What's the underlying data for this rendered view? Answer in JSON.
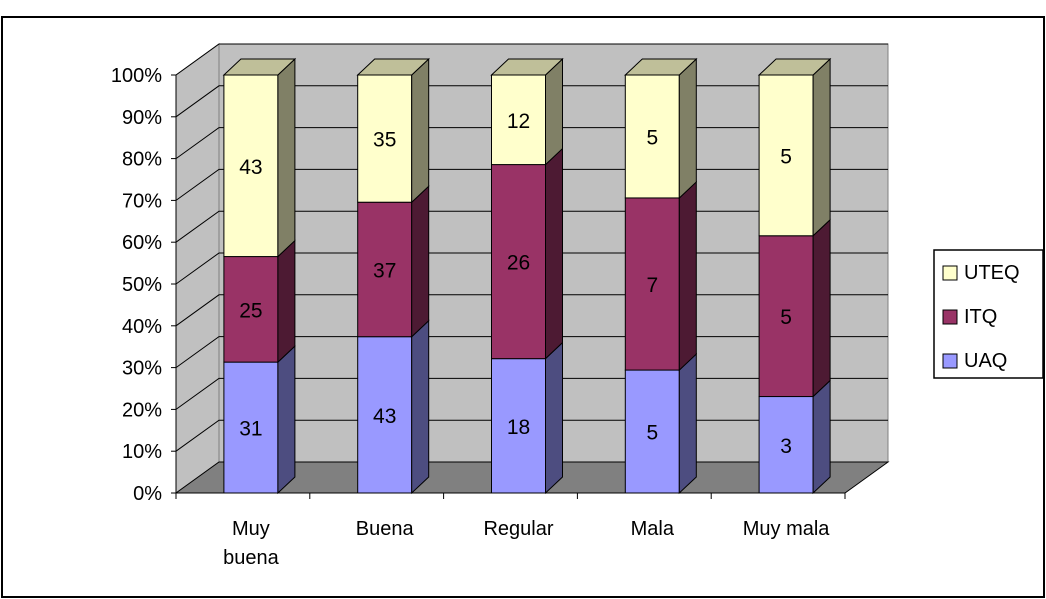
{
  "chart_data": {
    "type": "bar",
    "stacked": "percent",
    "three_d": true,
    "grid": true,
    "legend_position": "right",
    "title": "",
    "xlabel": "",
    "ylabel": "",
    "ylim": [
      0,
      100
    ],
    "yticks": [
      "0%",
      "10%",
      "20%",
      "30%",
      "40%",
      "50%",
      "60%",
      "70%",
      "80%",
      "90%",
      "100%"
    ],
    "categories": [
      [
        "Muy",
        "buena"
      ],
      [
        "Buena"
      ],
      [
        "Regular"
      ],
      [
        "Mala"
      ],
      [
        "Muy mala"
      ]
    ],
    "series": [
      {
        "name": "UAQ",
        "values": [
          31,
          43,
          18,
          5,
          3
        ],
        "color": "#9999ff",
        "side_color": "#4d4d80",
        "label_color": "#000000"
      },
      {
        "name": "ITQ",
        "values": [
          25,
          37,
          26,
          7,
          5
        ],
        "color": "#993366",
        "side_color": "#4d1a33",
        "label_color": "#000000"
      },
      {
        "name": "UTEQ",
        "values": [
          43,
          35,
          12,
          5,
          5
        ],
        "color": "#ffffcc",
        "side_color": "#808066",
        "label_color": "#000000"
      }
    ],
    "colors": {
      "wall": "#c0c0c0",
      "floor": "#808080",
      "gridline": "#000000"
    }
  }
}
